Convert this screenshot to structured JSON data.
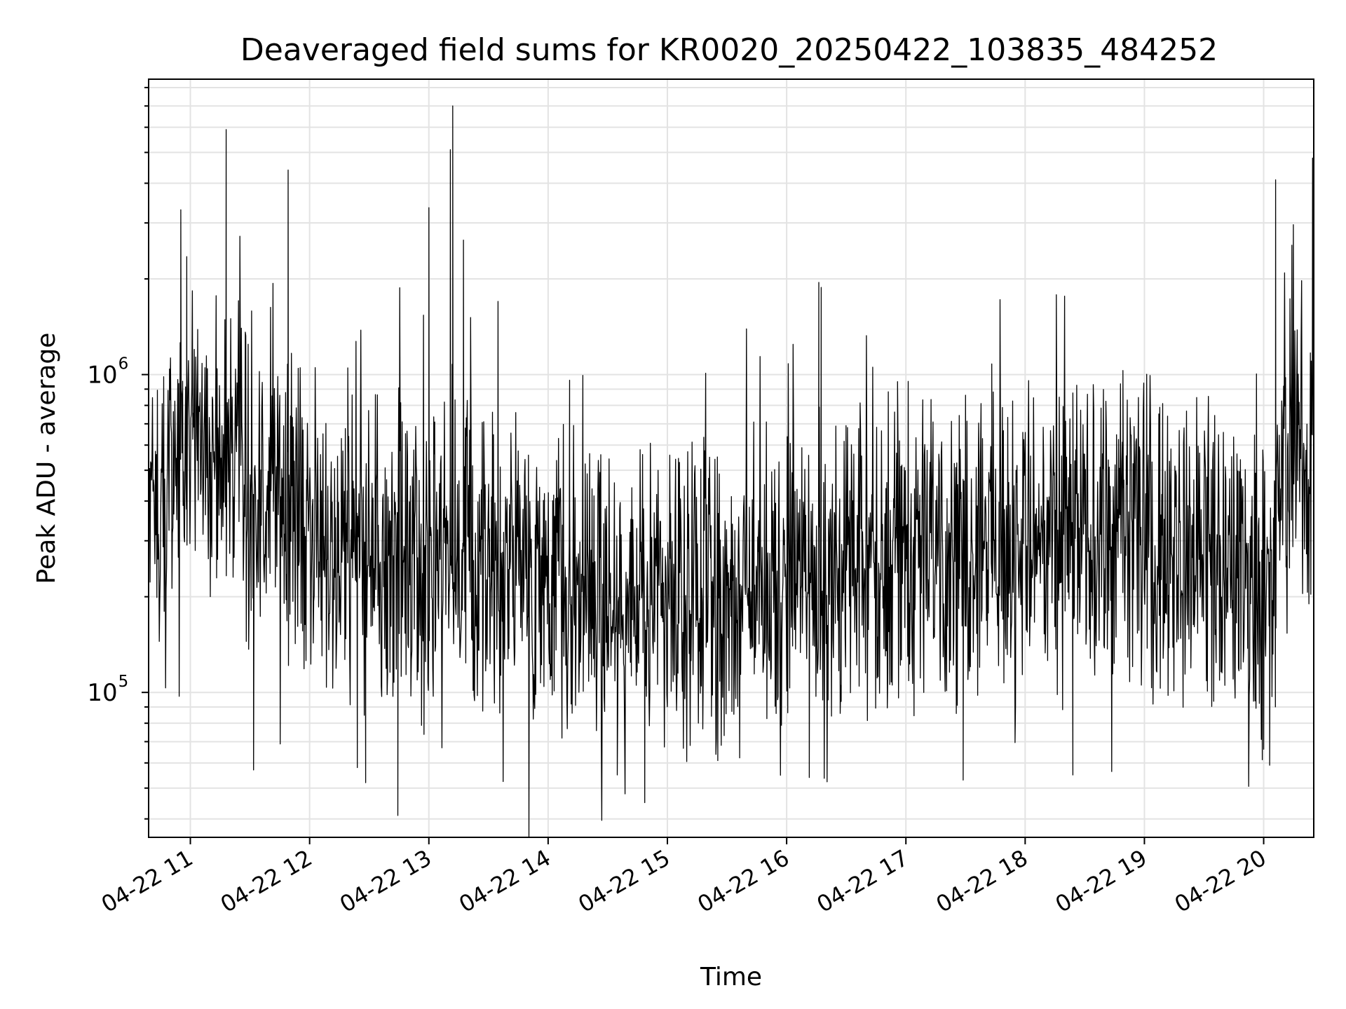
{
  "chart_data": {
    "type": "line",
    "title": "Deaveraged field sums for KR0020_20250422_103835_484252",
    "xlabel": "Time",
    "ylabel": "Peak ADU - average",
    "y_scale": "log",
    "ylim": [
      35000,
      8500000
    ],
    "xlim_hours": [
      10.65,
      20.42
    ],
    "x_tick_labels": [
      "04-22 11",
      "04-22 12",
      "04-22 13",
      "04-22 14",
      "04-22 15",
      "04-22 16",
      "04-22 17",
      "04-22 18",
      "04-22 19",
      "04-22 20"
    ],
    "y_tick_labels": [
      {
        "value": 100000,
        "base": "10",
        "exp": "5"
      },
      {
        "value": 1000000,
        "base": "10",
        "exp": "6"
      }
    ],
    "grid": true,
    "line_color": "#000000",
    "series": [
      {
        "trend_hours": [
          10.65,
          10.9,
          11.0,
          11.2,
          11.5,
          11.8,
          12.0,
          12.5,
          13.0,
          13.2,
          13.5,
          14.0,
          14.3,
          14.6,
          15.0,
          15.5,
          16.0,
          16.3,
          16.6,
          17.0,
          17.5,
          18.0,
          18.5,
          19.0,
          19.5,
          19.9,
          20.07,
          20.15,
          20.42
        ],
        "trend_values": [
          380000,
          600000,
          650000,
          600000,
          470000,
          380000,
          330000,
          270000,
          250000,
          300000,
          260000,
          250000,
          200000,
          180000,
          190000,
          200000,
          220000,
          230000,
          240000,
          290000,
          300000,
          310000,
          320000,
          300000,
          280000,
          240000,
          170000,
          560000,
          560000
        ],
        "peaks": [
          {
            "x": 10.92,
            "y": 3300000
          },
          {
            "x": 10.97,
            "y": 2350000
          },
          {
            "x": 11.3,
            "y": 5900000
          },
          {
            "x": 11.82,
            "y": 4400000
          },
          {
            "x": 12.32,
            "y": 1050000
          },
          {
            "x": 13.0,
            "y": 3350000
          },
          {
            "x": 13.18,
            "y": 5100000
          },
          {
            "x": 13.2,
            "y": 7000000
          },
          {
            "x": 13.29,
            "y": 2650000
          },
          {
            "x": 13.58,
            "y": 1700000
          },
          {
            "x": 14.18,
            "y": 960000
          },
          {
            "x": 16.27,
            "y": 1950000
          },
          {
            "x": 16.29,
            "y": 1880000
          },
          {
            "x": 16.93,
            "y": 950000
          },
          {
            "x": 17.72,
            "y": 1080000
          },
          {
            "x": 18.82,
            "y": 1030000
          },
          {
            "x": 20.1,
            "y": 4100000
          },
          {
            "x": 20.41,
            "y": 4800000
          }
        ],
        "dips": [
          {
            "x": 11.53,
            "y": 57000
          },
          {
            "x": 12.4,
            "y": 58000
          },
          {
            "x": 12.47,
            "y": 52000
          },
          {
            "x": 12.74,
            "y": 41000
          },
          {
            "x": 14.81,
            "y": 45000
          },
          {
            "x": 14.58,
            "y": 55000
          },
          {
            "x": 16.19,
            "y": 54000
          },
          {
            "x": 17.48,
            "y": 53000
          },
          {
            "x": 18.4,
            "y": 55000
          },
          {
            "x": 20.05,
            "y": 59000
          }
        ]
      }
    ]
  }
}
